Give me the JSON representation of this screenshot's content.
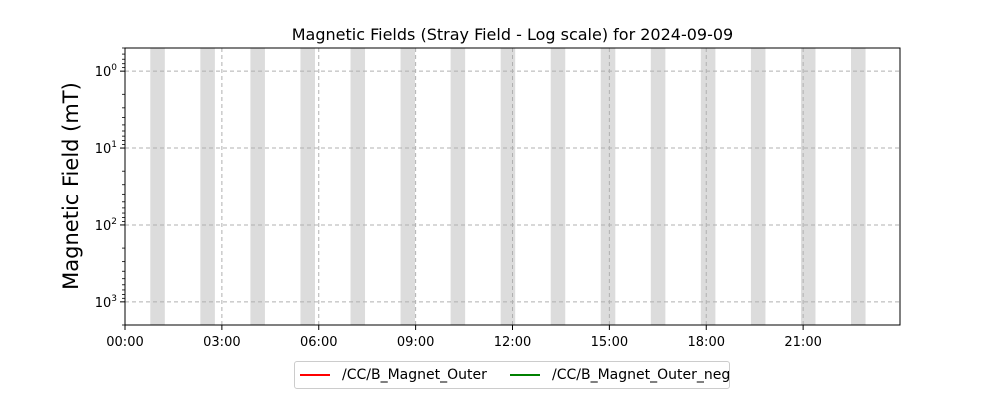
{
  "chart_data": {
    "type": "line",
    "title": "Magnetic Fields (Stray Field - Log scale) for 2024-09-09",
    "xlabel": "",
    "ylabel": "Magnetic Field (mT)",
    "y_scale": "log",
    "y_inverted": true,
    "ylim": [
      2000,
      0.5
    ],
    "y_ticks": [
      {
        "value": 1,
        "base": "10",
        "exp": "0"
      },
      {
        "value": 10,
        "base": "10",
        "exp": "1"
      },
      {
        "value": 100,
        "base": "10",
        "exp": "2"
      },
      {
        "value": 1000,
        "base": "10",
        "exp": "3"
      }
    ],
    "xlim": [
      "00:00",
      "24:00"
    ],
    "x_ticks": [
      "00:00",
      "03:00",
      "06:00",
      "09:00",
      "12:00",
      "15:00",
      "18:00",
      "21:00"
    ],
    "grid": true,
    "legend_position": "bottom-center",
    "shaded_periods": [
      [
        "00:47",
        "01:14"
      ],
      [
        "02:20",
        "02:47"
      ],
      [
        "03:53",
        "04:20"
      ],
      [
        "05:26",
        "05:53"
      ],
      [
        "06:59",
        "07:26"
      ],
      [
        "08:32",
        "08:59"
      ],
      [
        "10:05",
        "10:32"
      ],
      [
        "11:38",
        "12:05"
      ],
      [
        "13:11",
        "13:38"
      ],
      [
        "14:44",
        "15:11"
      ],
      [
        "16:17",
        "16:44"
      ],
      [
        "17:50",
        "18:17"
      ],
      [
        "19:23",
        "19:50"
      ],
      [
        "20:56",
        "21:23"
      ],
      [
        "22:29",
        "22:56"
      ]
    ],
    "shade_color": "#dcdcdc",
    "series": [
      {
        "name": "/CC/B_Magnet_Outer",
        "color": "#ff0000",
        "values": []
      },
      {
        "name": "/CC/B_Magnet_Outer_neg",
        "color": "#008000",
        "values": []
      }
    ]
  }
}
